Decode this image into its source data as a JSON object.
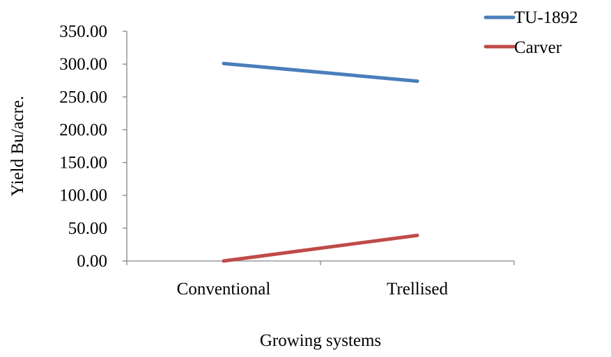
{
  "chart_data": {
    "type": "line",
    "categories": [
      "Conventional",
      "Trellised"
    ],
    "series": [
      {
        "name": "TU-1892",
        "values": [
          301,
          274
        ],
        "color": "#4a7ebb"
      },
      {
        "name": "Carver",
        "values": [
          0,
          39
        ],
        "color": "#be4b48"
      }
    ],
    "title": "",
    "xlabel": "Growing systems",
    "ylabel": "Yield Bu/acre.",
    "ylim": [
      0,
      350
    ],
    "yticks": [
      "0.00",
      "50.00",
      "100.00",
      "150.00",
      "200.00",
      "250.00",
      "300.00",
      "350.00"
    ],
    "grid": false,
    "legend_position": "top-right"
  }
}
